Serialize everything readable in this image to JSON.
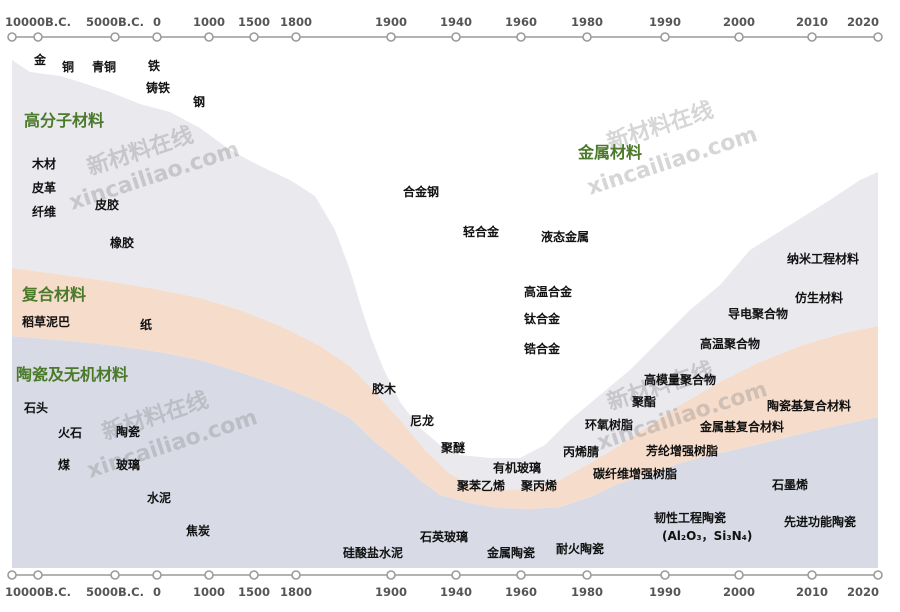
{
  "timeline": {
    "ticks": [
      "10000B.C.",
      "5000B.C.",
      "0",
      "1000",
      "1500",
      "1800",
      "1900",
      "1940",
      "1960",
      "1980",
      "1990",
      "2000",
      "2010",
      "2020"
    ]
  },
  "categories": {
    "polymer": "高分子材料",
    "composite": "复合材料",
    "ceramic": "陶瓷及无机材料",
    "metal": "金属材料"
  },
  "materials": {
    "jin": "金",
    "tong": "铜",
    "qingtong": "青铜",
    "tie": "铁",
    "zhutie": "铸铁",
    "gang": "钢",
    "mucai": "木材",
    "pige": "皮革",
    "xianwei": "纤维",
    "pijiao": "皮胶",
    "xiangjiao": "橡胶",
    "daocao": "稻草泥巴",
    "zhi": "纸",
    "shitou": "石头",
    "huoshi": "火石",
    "taoci": "陶瓷",
    "mei": "煤",
    "boli": "玻璃",
    "shuini": "水泥",
    "jiaotan": "焦炭",
    "hejingang": "合金钢",
    "qinghejin": "轻合金",
    "yetai": "液态金属",
    "gaowen": "高温合金",
    "tai": "钛合金",
    "gao": "锆合金",
    "jiaomu": "胶木",
    "nilong": "尼龙",
    "jumi": "聚醚",
    "youji": "有机玻璃",
    "jubenyixi": "聚苯乙烯",
    "jubingxi": "聚丙烯",
    "guisuan": "硅酸盐水泥",
    "shiying": "石英玻璃",
    "jinshutaoci": "金属陶瓷",
    "naihuo": "耐火陶瓷",
    "naimi": "纳米工程材料",
    "fangsheng": "仿生材料",
    "daodian": "导电聚合物",
    "gaowenjuhe": "高温聚合物",
    "gaomoliang": "高模量聚合物",
    "juzhi": "聚酯",
    "huanyang": "环氧树脂",
    "bingxijing": "丙烯腈",
    "fanglun": "芳纶增强树脂",
    "tanxian": "碳纤维增强树脂",
    "taocijifuhe": "陶瓷基复合材料",
    "jinshujifuhe": "金属基复合材料",
    "shimoxi": "石墨烯",
    "renxing": "韧性工程陶瓷",
    "renxing_formula": "(Al₂O₃，Si₃N₄)",
    "xianjin": "先进功能陶瓷"
  },
  "watermarks": {
    "cn": "新材料在线",
    "en": "xincailiao.com"
  },
  "colors": {
    "polymer_band": "#e9e9ee",
    "composite_band": "#f6dccb",
    "ceramic_band": "#d8dbe6",
    "category_text": "#4a7a2a",
    "axis": "#9a9a9a"
  }
}
